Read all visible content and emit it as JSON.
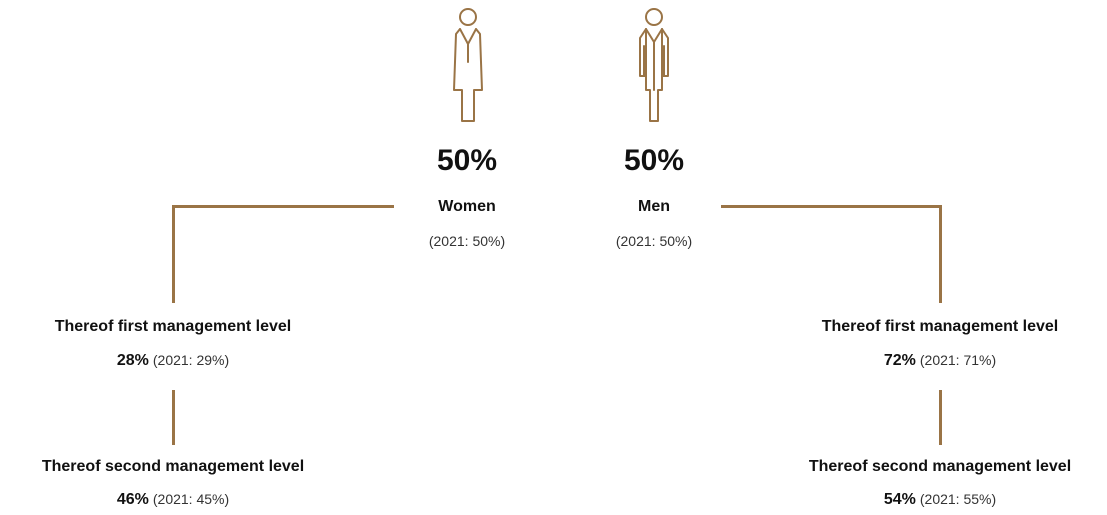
{
  "accent_color": "#9a7446",
  "women": {
    "icon": "woman-icon",
    "percent": "50%",
    "label": "Women",
    "prior": "(2021: 50%)",
    "first_level": {
      "label": "Thereof first management level",
      "percent": "28%",
      "prior": "(2021: 29%)"
    },
    "second_level": {
      "label": "Thereof second management level",
      "percent": "46%",
      "prior": "(2021: 45%)"
    }
  },
  "men": {
    "icon": "man-icon",
    "percent": "50%",
    "label": "Men",
    "prior": "(2021: 50%)",
    "first_level": {
      "label": "Thereof first management level",
      "percent": "72%",
      "prior": "(2021: 71%)"
    },
    "second_level": {
      "label": "Thereof second management level",
      "percent": "54%",
      "prior": "(2021: 55%)"
    }
  }
}
